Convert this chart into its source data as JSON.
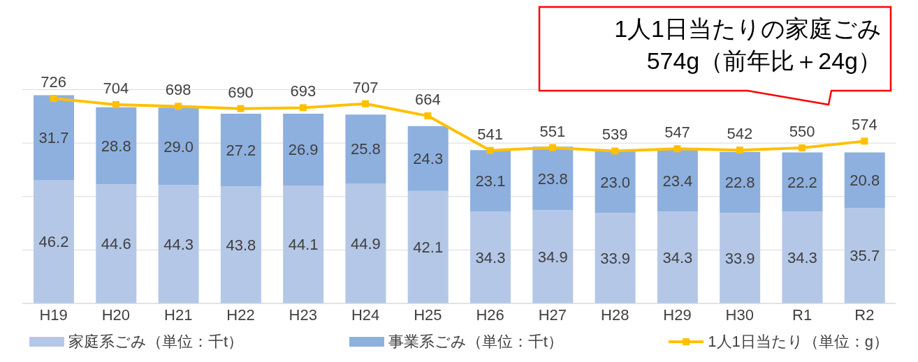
{
  "chart_data": {
    "type": "bar",
    "stacked": true,
    "data_labels": true,
    "grid": "y",
    "tick_labels": "x",
    "legend": "bottom",
    "categories": [
      "H19",
      "H20",
      "H21",
      "H22",
      "H23",
      "H24",
      "H25",
      "H26",
      "H27",
      "H28",
      "H29",
      "H30",
      "R1",
      "R2"
    ],
    "yticks": [
      {
        "value": 0,
        "label": null
      },
      {
        "value": 20,
        "label": null
      },
      {
        "value": 40,
        "label": null
      },
      {
        "value": 60,
        "label": null
      },
      {
        "value": 80,
        "label": null
      }
    ],
    "marker": "square",
    "series": [
      {
        "name": "家庭系ごみ（単位：千t）",
        "color": "#b4c7e7",
        "values": [
          46.2,
          44.6,
          44.3,
          43.8,
          44.1,
          44.9,
          42.1,
          34.3,
          34.9,
          33.9,
          34.3,
          33.9,
          34.3,
          35.7
        ],
        "value_labels": [
          "46.2",
          "44.6",
          "44.3",
          "43.8",
          "44.1",
          "44.9",
          "42.1",
          "34.3",
          "34.9",
          "33.9",
          "34.3",
          "33.9",
          "34.3",
          "35.7"
        ]
      },
      {
        "name": "事業系ごみ（単位：千t）",
        "color": "#8eb0de",
        "values": [
          31.7,
          28.8,
          29.0,
          27.2,
          26.9,
          25.8,
          24.3,
          23.1,
          23.8,
          23.0,
          23.4,
          22.8,
          22.2,
          20.8
        ],
        "value_labels": [
          "31.7",
          "28.8",
          "29.0",
          "27.2",
          "26.9",
          "25.8",
          "24.3",
          "23.1",
          "23.8",
          "23.0",
          "23.4",
          "22.8",
          "22.2",
          "20.8"
        ]
      },
      {
        "name": "1人1日当たり（単位：g）",
        "type": "line",
        "axis": "y2",
        "color": "#ffc000",
        "values": [
          726,
          704,
          698,
          690,
          693,
          707,
          664,
          541,
          551,
          539,
          547,
          542,
          550,
          574
        ]
      }
    ],
    "annotations": [
      "1人1日当たりの家庭ごみ\n574g（前年比＋24g）"
    ]
  }
}
